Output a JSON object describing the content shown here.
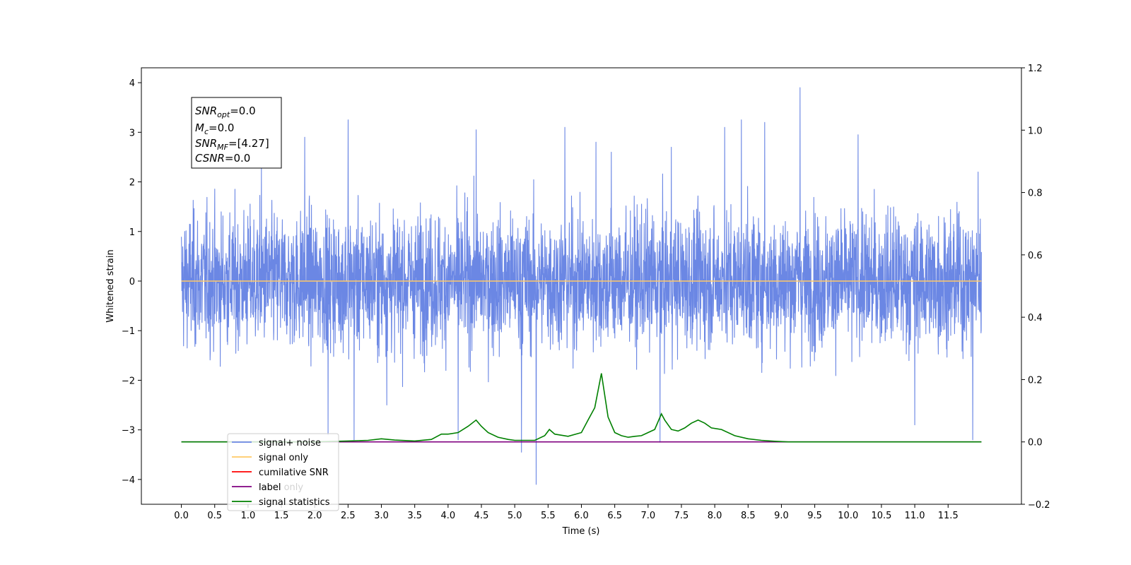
{
  "chart_data": {
    "type": "line",
    "xlabel": "Time (s)",
    "ylabel": "Whitened strain",
    "xlim": [
      -0.6,
      12.6
    ],
    "ylim": [
      -4.5,
      4.3
    ],
    "y2lim": [
      -0.2,
      1.2
    ],
    "x_ticks": [
      "0.0",
      "0.5",
      "1.0",
      "1.5",
      "2.0",
      "2.5",
      "3.0",
      "3.5",
      "4.0",
      "4.5",
      "5.0",
      "5.5",
      "6.0",
      "6.5",
      "7.0",
      "7.5",
      "8.0",
      "8.5",
      "9.0",
      "9.5",
      "10.0",
      "10.5",
      "11.0",
      "11.5"
    ],
    "y_ticks": [
      "4",
      "3",
      "2",
      "1",
      "0",
      "−1",
      "−2",
      "−3",
      "−4"
    ],
    "y2_ticks": [
      "1.2",
      "1.0",
      "0.8",
      "0.6",
      "0.4",
      "0.2",
      "0.0",
      "−0.2"
    ],
    "annotation": {
      "lines": [
        {
          "var": "SNR",
          "sub": "opt",
          "value": "=0.0"
        },
        {
          "var": "M",
          "sub": "c",
          "value": "=0.0"
        },
        {
          "var": "SNR",
          "sub": "MF",
          "value": "=[4.27]"
        },
        {
          "var": "CSNR",
          "sub": "",
          "value": "=0.0"
        }
      ]
    },
    "legend": {
      "placement": "lower-left",
      "entries": [
        {
          "label": "signal+ noise",
          "color": "#6b87e4"
        },
        {
          "label": "signal only",
          "color": "#ffc966"
        },
        {
          "label": "cumilative SNR",
          "color": "#ff0000"
        },
        {
          "label": "label",
          "color": "#800080"
        },
        {
          "label": "signal statistics",
          "color": "#008000"
        }
      ],
      "hidden_text": "label only"
    },
    "series": [
      {
        "name": "signal+ noise",
        "axis": "left",
        "color": "#6b87e4",
        "style": "dense noise",
        "x_range": [
          0.0,
          12.0
        ],
        "std": 0.95,
        "spikes": [
          [
            1.2,
            2.3
          ],
          [
            1.85,
            2.9
          ],
          [
            2.2,
            -3.1
          ],
          [
            2.5,
            3.25
          ],
          [
            2.59,
            -3.2
          ],
          [
            3.08,
            -2.5
          ],
          [
            4.15,
            -3.2
          ],
          [
            4.42,
            3.05
          ],
          [
            5.1,
            -3.45
          ],
          [
            5.32,
            -4.1
          ],
          [
            5.75,
            3.1
          ],
          [
            6.22,
            2.8
          ],
          [
            6.45,
            2.6
          ],
          [
            7.18,
            -3.25
          ],
          [
            7.35,
            2.7
          ],
          [
            8.15,
            3.1
          ],
          [
            8.4,
            3.25
          ],
          [
            8.75,
            3.2
          ],
          [
            9.28,
            3.9
          ],
          [
            10.15,
            2.95
          ],
          [
            11.0,
            -2.9
          ],
          [
            11.87,
            -3.2
          ],
          [
            11.95,
            2.2
          ]
        ]
      },
      {
        "name": "signal only",
        "axis": "left",
        "color": "#ffc966",
        "x": [
          0.0,
          12.0
        ],
        "values": [
          0.0,
          0.0
        ]
      },
      {
        "name": "label",
        "axis": "right",
        "color": "#800080",
        "x": [
          0.0,
          12.0
        ],
        "values": [
          0.0,
          0.0
        ]
      },
      {
        "name": "signal statistics",
        "axis": "right",
        "color": "#008000",
        "x": [
          0.0,
          2.0,
          2.5,
          2.8,
          3.0,
          3.2,
          3.5,
          3.75,
          3.9,
          4.0,
          4.15,
          4.3,
          4.42,
          4.5,
          4.6,
          4.75,
          4.9,
          5.0,
          5.3,
          5.45,
          5.52,
          5.6,
          5.8,
          6.0,
          6.1,
          6.2,
          6.3,
          6.4,
          6.5,
          6.6,
          6.7,
          6.8,
          6.9,
          7.0,
          7.1,
          7.2,
          7.25,
          7.35,
          7.45,
          7.55,
          7.65,
          7.75,
          7.85,
          7.95,
          8.1,
          8.3,
          8.5,
          8.7,
          8.9,
          9.1,
          12.0
        ],
        "values": [
          0.0,
          0.0,
          0.003,
          0.005,
          0.01,
          0.006,
          0.003,
          0.008,
          0.025,
          0.025,
          0.03,
          0.05,
          0.07,
          0.05,
          0.03,
          0.015,
          0.008,
          0.005,
          0.005,
          0.02,
          0.04,
          0.025,
          0.018,
          0.03,
          0.07,
          0.11,
          0.22,
          0.08,
          0.03,
          0.02,
          0.015,
          0.018,
          0.02,
          0.03,
          0.04,
          0.09,
          0.07,
          0.04,
          0.035,
          0.045,
          0.06,
          0.07,
          0.06,
          0.045,
          0.04,
          0.02,
          0.01,
          0.005,
          0.002,
          0.0,
          0.0
        ]
      }
    ]
  }
}
